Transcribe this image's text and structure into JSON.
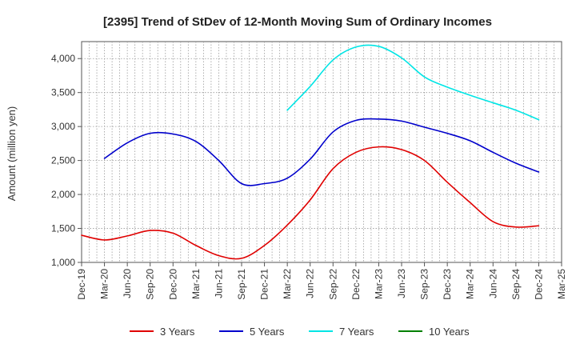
{
  "chart_data": {
    "type": "line",
    "title": "[2395]  Trend of StDev of 12-Month Moving Sum of Ordinary Incomes",
    "ylabel": "Amount (million yen)",
    "xlabel": "",
    "ylim": [
      1000,
      4250
    ],
    "yticks": [
      1000,
      1500,
      2000,
      2500,
      3000,
      3500,
      4000
    ],
    "ytick_labels": [
      "1,000",
      "1,500",
      "2,000",
      "2,500",
      "3,000",
      "3,500",
      "4,000"
    ],
    "x": [
      "Dec-19",
      "Mar-20",
      "Jun-20",
      "Sep-20",
      "Dec-20",
      "Mar-21",
      "Jun-21",
      "Sep-21",
      "Dec-21",
      "Mar-22",
      "Jun-22",
      "Sep-22",
      "Dec-22",
      "Mar-23",
      "Jun-23",
      "Sep-23",
      "Dec-23",
      "Mar-24",
      "Jun-24",
      "Sep-24",
      "Dec-24",
      "Mar-25"
    ],
    "grid": true,
    "legend_position": "bottom",
    "series": [
      {
        "name": "3 Years",
        "color": "#e00000",
        "values": [
          1400,
          1330,
          1390,
          1470,
          1430,
          1250,
          1100,
          1060,
          1250,
          1550,
          1920,
          2380,
          2620,
          2700,
          2660,
          2500,
          2180,
          1880,
          1600,
          1520,
          1540,
          null
        ]
      },
      {
        "name": "5 Years",
        "color": "#0000cc",
        "values": [
          null,
          2530,
          2760,
          2900,
          2890,
          2780,
          2500,
          2160,
          2160,
          2240,
          2520,
          2920,
          3090,
          3110,
          3080,
          2990,
          2900,
          2790,
          2620,
          2460,
          2330,
          null
        ]
      },
      {
        "name": "7 Years",
        "color": "#00e5e5",
        "values": [
          null,
          null,
          null,
          null,
          null,
          null,
          null,
          null,
          null,
          3240,
          3590,
          3980,
          4170,
          4180,
          4010,
          3730,
          3580,
          3460,
          3350,
          3240,
          3100,
          null
        ]
      },
      {
        "name": "10 Years",
        "color": "#008000",
        "values": [
          null,
          null,
          null,
          null,
          null,
          null,
          null,
          null,
          null,
          null,
          null,
          null,
          null,
          null,
          null,
          null,
          null,
          null,
          null,
          null,
          null,
          null
        ]
      }
    ]
  }
}
